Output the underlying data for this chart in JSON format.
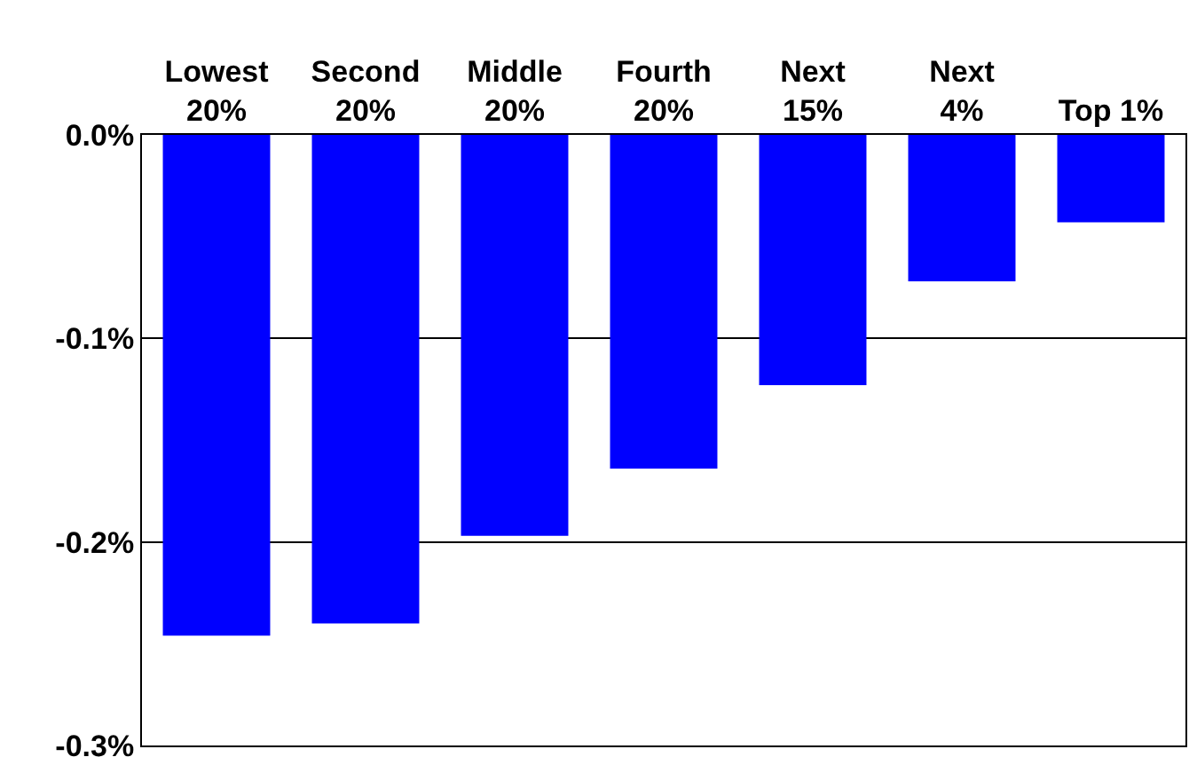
{
  "chart_data": {
    "type": "bar",
    "categories": [
      "Lowest\n20%",
      "Second\n20%",
      "Middle\n20%",
      "Fourth\n20%",
      "Next\n15%",
      "Next\n4%",
      "Top 1%"
    ],
    "values": [
      -0.246,
      -0.24,
      -0.197,
      -0.164,
      -0.123,
      -0.072,
      -0.043
    ],
    "color": "#0000ff",
    "ylim": [
      -0.3,
      0
    ],
    "yticks": [
      {
        "value": -0.3,
        "label": "-0.3%"
      },
      {
        "value": -0.2,
        "label": "-0.2%"
      },
      {
        "value": -0.1,
        "label": "-0.1%"
      },
      {
        "value": 0,
        "label": "0.0%"
      }
    ],
    "grid": "y"
  }
}
